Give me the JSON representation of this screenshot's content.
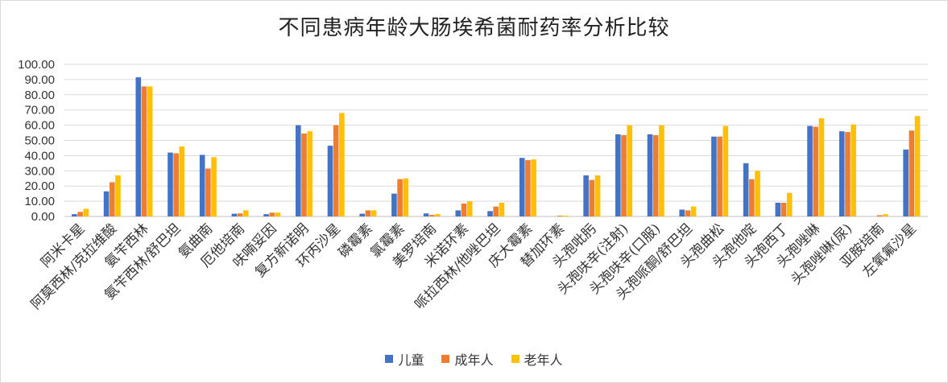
{
  "chart_data": {
    "type": "bar",
    "title": "不同患病年龄大肠埃希菌耐药率分析比较",
    "xlabel": "",
    "ylabel": "",
    "ylim": [
      0,
      100
    ],
    "yticks": [
      "0.00",
      "10.00",
      "20.00",
      "30.00",
      "40.00",
      "50.00",
      "60.00",
      "70.00",
      "80.00",
      "90.00",
      "100.00"
    ],
    "grid": true,
    "legend_position": "bottom",
    "categories": [
      "阿米卡星",
      "阿莫西林/克拉维酸",
      "氨苄西林",
      "氨苄西林/舒巴坦",
      "氨曲南",
      "厄他培南",
      "呋喃妥因",
      "复方新诺明",
      "环丙沙星",
      "磷霉素",
      "氯霉素",
      "美罗培南",
      "米诺环素",
      "哌拉西林/他唑巴坦",
      "庆大霉素",
      "替加环素",
      "头孢吡肟",
      "头孢呋辛(注射)",
      "头孢呋辛(口服)",
      "头孢哌酮/舒巴坦",
      "头孢曲松",
      "头孢他啶",
      "头孢西丁",
      "头孢唑啉",
      "头孢唑啉(尿)",
      "亚胺培南",
      "左氧氟沙星"
    ],
    "series": [
      {
        "name": "儿童",
        "color": "#4472C4",
        "values": [
          1.5,
          16.5,
          91.5,
          42.0,
          40.5,
          1.8,
          1.5,
          60.0,
          46.5,
          1.8,
          15.0,
          2.0,
          4.0,
          3.5,
          38.5,
          0.0,
          27.0,
          54.0,
          54.0,
          4.5,
          52.5,
          35.0,
          9.0,
          59.5,
          56.0,
          0.0,
          44.0
        ]
      },
      {
        "name": "成年人",
        "color": "#ED7D31",
        "values": [
          3.0,
          22.5,
          85.5,
          41.5,
          31.5,
          2.0,
          2.5,
          54.5,
          60.0,
          4.0,
          24.5,
          1.0,
          8.5,
          6.5,
          37.0,
          0.5,
          24.0,
          53.5,
          53.5,
          4.0,
          52.5,
          24.5,
          9.0,
          59.0,
          55.5,
          0.8,
          56.5
        ]
      },
      {
        "name": "老年人",
        "color": "#FFC000",
        "values": [
          5.0,
          27.0,
          85.5,
          46.0,
          39.0,
          4.0,
          2.5,
          56.0,
          68.0,
          4.0,
          25.0,
          1.5,
          10.0,
          9.0,
          37.5,
          0.5,
          27.0,
          60.0,
          60.0,
          6.5,
          59.5,
          30.0,
          15.5,
          64.5,
          60.5,
          1.5,
          66.0
        ]
      }
    ]
  }
}
